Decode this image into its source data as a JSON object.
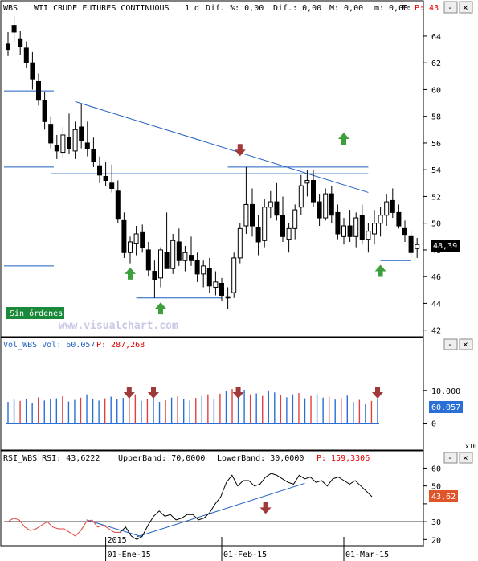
{
  "header": {
    "symbol": "WBS",
    "title": "WTI CRUDE FUTURES CONTINUOUS",
    "period": "1 d",
    "dif_label": "Dif. %: 0,00",
    "dif2_label": "Dif.: 0,00",
    "m_label": "M: 0,00",
    "m2_label": "m: 0,00",
    "f_label": "F:",
    "p_label": "P: 43"
  },
  "colors": {
    "up": "#ffffff",
    "down": "#000000",
    "trendline": "#1f5fbf",
    "level": "#1f5fbf",
    "arrow_up": "#3da03d",
    "arrow_down": "#a03a3a",
    "vol_blue": "#2a6fd6",
    "vol_red": "#e04040",
    "rsi_red": "#e04040",
    "rsi_black": "#000000",
    "badge_blue": "#2a6fd6",
    "badge_orange": "#e0542a",
    "sin_ordenes_bg": "#1a8a3a"
  },
  "sin_ordenes": "Sin órdenes",
  "watermark": "www.visualchart.com",
  "window_buttons": [
    "-",
    "×"
  ],
  "chart_data": [
    {
      "type": "candlestick",
      "ylim": [
        41.5,
        65.5
      ],
      "yticks": [
        42,
        44,
        46,
        48,
        50,
        52,
        54,
        56,
        58,
        60,
        62,
        64
      ],
      "last_price": "48,39",
      "bars": [
        {
          "o": 63.4,
          "h": 64.3,
          "l": 62.5,
          "c": 63.0
        },
        {
          "o": 64.8,
          "h": 65.5,
          "l": 63.6,
          "c": 64.3
        },
        {
          "o": 63.8,
          "h": 64.4,
          "l": 62.6,
          "c": 63.2
        },
        {
          "o": 63.1,
          "h": 63.6,
          "l": 61.6,
          "c": 62.0
        },
        {
          "o": 62.0,
          "h": 62.8,
          "l": 60.0,
          "c": 60.8
        },
        {
          "o": 60.6,
          "h": 61.2,
          "l": 58.8,
          "c": 59.2
        },
        {
          "o": 59.2,
          "h": 59.8,
          "l": 57.0,
          "c": 57.6
        },
        {
          "o": 57.4,
          "h": 58.0,
          "l": 55.6,
          "c": 56.0
        },
        {
          "o": 55.8,
          "h": 56.6,
          "l": 54.8,
          "c": 55.4
        },
        {
          "o": 55.3,
          "h": 57.2,
          "l": 54.9,
          "c": 56.6
        },
        {
          "o": 56.4,
          "h": 58.2,
          "l": 55.2,
          "c": 55.6
        },
        {
          "o": 55.4,
          "h": 57.6,
          "l": 54.8,
          "c": 57.0
        },
        {
          "o": 57.2,
          "h": 58.9,
          "l": 55.6,
          "c": 56.2
        },
        {
          "o": 56.0,
          "h": 57.6,
          "l": 55.0,
          "c": 55.6
        },
        {
          "o": 55.5,
          "h": 56.4,
          "l": 54.2,
          "c": 54.6
        },
        {
          "o": 54.3,
          "h": 55.0,
          "l": 53.0,
          "c": 53.6
        },
        {
          "o": 53.5,
          "h": 54.6,
          "l": 52.8,
          "c": 53.2
        },
        {
          "o": 53.0,
          "h": 54.4,
          "l": 52.3,
          "c": 52.6
        },
        {
          "o": 52.4,
          "h": 53.2,
          "l": 50.0,
          "c": 50.3
        },
        {
          "o": 50.2,
          "h": 50.8,
          "l": 47.4,
          "c": 47.8
        },
        {
          "o": 47.8,
          "h": 49.0,
          "l": 47.0,
          "c": 48.6
        },
        {
          "o": 48.5,
          "h": 49.8,
          "l": 47.6,
          "c": 49.2
        },
        {
          "o": 49.3,
          "h": 49.9,
          "l": 47.8,
          "c": 48.2
        },
        {
          "o": 48.0,
          "h": 48.6,
          "l": 46.0,
          "c": 46.5
        },
        {
          "o": 46.4,
          "h": 47.2,
          "l": 44.4,
          "c": 45.8
        },
        {
          "o": 45.9,
          "h": 48.2,
          "l": 45.2,
          "c": 48.0
        },
        {
          "o": 47.8,
          "h": 50.8,
          "l": 46.8,
          "c": 46.6
        },
        {
          "o": 46.6,
          "h": 49.2,
          "l": 46.2,
          "c": 48.7
        },
        {
          "o": 48.6,
          "h": 49.6,
          "l": 46.8,
          "c": 47.2
        },
        {
          "o": 47.2,
          "h": 48.3,
          "l": 46.4,
          "c": 47.8
        },
        {
          "o": 47.6,
          "h": 49.0,
          "l": 46.8,
          "c": 47.2
        },
        {
          "o": 47.2,
          "h": 47.8,
          "l": 45.6,
          "c": 46.2
        },
        {
          "o": 46.2,
          "h": 47.2,
          "l": 45.2,
          "c": 46.8
        },
        {
          "o": 46.6,
          "h": 47.4,
          "l": 44.8,
          "c": 45.3
        },
        {
          "o": 45.2,
          "h": 46.4,
          "l": 44.6,
          "c": 45.6
        },
        {
          "o": 45.5,
          "h": 45.9,
          "l": 44.2,
          "c": 44.6
        },
        {
          "o": 44.5,
          "h": 45.2,
          "l": 43.6,
          "c": 44.4
        },
        {
          "o": 44.8,
          "h": 47.8,
          "l": 44.4,
          "c": 47.4
        },
        {
          "o": 47.4,
          "h": 50.0,
          "l": 47.0,
          "c": 49.6
        },
        {
          "o": 49.8,
          "h": 54.2,
          "l": 49.2,
          "c": 51.4
        },
        {
          "o": 51.4,
          "h": 52.6,
          "l": 49.0,
          "c": 49.8
        },
        {
          "o": 49.7,
          "h": 50.6,
          "l": 47.6,
          "c": 48.6
        },
        {
          "o": 48.7,
          "h": 51.8,
          "l": 48.2,
          "c": 51.2
        },
        {
          "o": 51.2,
          "h": 52.4,
          "l": 50.4,
          "c": 51.6
        },
        {
          "o": 51.6,
          "h": 53.0,
          "l": 50.2,
          "c": 50.6
        },
        {
          "o": 50.6,
          "h": 52.0,
          "l": 48.6,
          "c": 49.0
        },
        {
          "o": 48.8,
          "h": 50.0,
          "l": 47.8,
          "c": 49.6
        },
        {
          "o": 49.6,
          "h": 51.4,
          "l": 48.8,
          "c": 51.0
        },
        {
          "o": 51.2,
          "h": 53.6,
          "l": 50.6,
          "c": 52.8
        },
        {
          "o": 53.0,
          "h": 54.0,
          "l": 52.0,
          "c": 53.2
        },
        {
          "o": 53.2,
          "h": 54.0,
          "l": 51.2,
          "c": 51.6
        },
        {
          "o": 51.6,
          "h": 52.2,
          "l": 49.8,
          "c": 50.4
        },
        {
          "o": 50.4,
          "h": 52.6,
          "l": 50.2,
          "c": 52.2
        },
        {
          "o": 52.2,
          "h": 52.8,
          "l": 50.0,
          "c": 50.6
        },
        {
          "o": 50.8,
          "h": 51.4,
          "l": 48.8,
          "c": 49.2
        },
        {
          "o": 49.0,
          "h": 50.4,
          "l": 48.4,
          "c": 49.8
        },
        {
          "o": 49.8,
          "h": 51.0,
          "l": 48.6,
          "c": 49.0
        },
        {
          "o": 49.0,
          "h": 50.8,
          "l": 48.2,
          "c": 50.4
        },
        {
          "o": 50.6,
          "h": 51.4,
          "l": 48.4,
          "c": 48.8
        },
        {
          "o": 48.8,
          "h": 50.0,
          "l": 47.8,
          "c": 49.4
        },
        {
          "o": 49.2,
          "h": 51.0,
          "l": 48.4,
          "c": 50.0
        },
        {
          "o": 50.0,
          "h": 51.2,
          "l": 49.0,
          "c": 50.6
        },
        {
          "o": 50.6,
          "h": 52.2,
          "l": 49.8,
          "c": 51.6
        },
        {
          "o": 51.7,
          "h": 52.6,
          "l": 50.4,
          "c": 50.8
        },
        {
          "o": 50.8,
          "h": 51.4,
          "l": 49.6,
          "c": 49.8
        },
        {
          "o": 49.6,
          "h": 50.2,
          "l": 48.6,
          "c": 49.1
        },
        {
          "o": 49.0,
          "h": 49.4,
          "l": 47.4,
          "c": 47.8
        },
        {
          "o": 48.1,
          "h": 48.9,
          "l": 47.4,
          "c": 48.4
        }
      ],
      "annotations": {
        "trendlines": [
          {
            "from": {
              "bar": 11,
              "y": 59.1
            },
            "to": {
              "bar": 59,
              "y": 52.3
            }
          },
          {
            "from": {
              "bar": 7,
              "y": 53.7
            },
            "to": {
              "bar": 59,
              "y": 53.7
            }
          },
          {
            "from": {
              "bar": 36,
              "y": 54.2
            },
            "to": {
              "bar": 59,
              "y": 54.2
            }
          }
        ],
        "levels": [
          {
            "from": 0,
            "to": 7.5,
            "y": 59.9
          },
          {
            "from": 0,
            "to": 7.5,
            "y": 54.2
          },
          {
            "from": 0,
            "to": 7.5,
            "y": 46.8
          },
          {
            "from": 21,
            "to": 35,
            "y": 44.4
          },
          {
            "from": 61,
            "to": 66,
            "y": 47.2
          }
        ],
        "arrows": [
          {
            "bar": 20,
            "y": 46.2,
            "dir": "up"
          },
          {
            "bar": 38,
            "y": 55.5,
            "dir": "down"
          },
          {
            "bar": 55,
            "y": 56.3,
            "dir": "up"
          },
          {
            "bar": 61,
            "y": 46.4,
            "dir": "up"
          },
          {
            "bar": 25,
            "y": 43.6,
            "dir": "up"
          }
        ]
      }
    },
    {
      "type": "bar",
      "title": "Vol_WBS Vol: 60.057",
      "p_label": "P: 287,268",
      "ylim": [
        -8,
        22
      ],
      "yticks": [
        0,
        10
      ],
      "ytick_labels": [
        "0",
        "10.000"
      ],
      "scale_note": "x10",
      "last_value": "60.057",
      "values": [
        6.5,
        7.2,
        6.8,
        7.5,
        6.2,
        7.9,
        6.9,
        7.4,
        7.6,
        8.2,
        6.6,
        7.1,
        7.8,
        8.8,
        7.3,
        6.9,
        7.6,
        8.1,
        7.4,
        7.7,
        8.5,
        8.8,
        6.8,
        7.3,
        8.1,
        6.5,
        7.0,
        7.8,
        8.2,
        7.4,
        6.9,
        7.7,
        8.3,
        8.8,
        7.2,
        9.0,
        9.9,
        10.4,
        9.6,
        10.2,
        8.8,
        9.1,
        8.3,
        10.0,
        9.4,
        8.6,
        7.9,
        8.8,
        9.2,
        7.6,
        8.3,
        8.9,
        7.8,
        8.1,
        7.2,
        7.6,
        8.4,
        6.5,
        7.1,
        5.8,
        6.8,
        7.2
      ],
      "colors": [
        "b",
        "b",
        "r",
        "b",
        "b",
        "r",
        "b",
        "b",
        "b",
        "r",
        "b",
        "b",
        "r",
        "b",
        "b",
        "b",
        "r",
        "b",
        "b",
        "b",
        "r",
        "r",
        "b",
        "r",
        "b",
        "b",
        "r",
        "b",
        "r",
        "b",
        "b",
        "r",
        "b",
        "r",
        "b",
        "r",
        "b",
        "r",
        "b",
        "b",
        "r",
        "b",
        "r",
        "b",
        "b",
        "r",
        "b",
        "b",
        "r",
        "b",
        "r",
        "b",
        "b",
        "r",
        "b",
        "r",
        "b",
        "b",
        "r",
        "b",
        "r",
        "b"
      ],
      "arrows": [
        {
          "bar": 20,
          "dir": "down"
        },
        {
          "bar": 24,
          "dir": "down"
        },
        {
          "bar": 38,
          "dir": "down"
        },
        {
          "bar": 61,
          "dir": "down"
        }
      ]
    },
    {
      "type": "line",
      "title": "RSI_WBS RSI: 43,6222",
      "upper_band_label": "UpperBand: 70,0000",
      "lower_band_label": "LowerBand: 30,0000",
      "p_label": "P: 159,3306",
      "ylim": [
        17,
        62
      ],
      "yticks": [
        20,
        30,
        40,
        50,
        60
      ],
      "reference_y": 30,
      "last_value": "43,62",
      "series": [
        {
          "color_key": "rsi_red",
          "values": [
            30,
            32,
            31,
            27,
            25,
            26,
            28,
            30,
            27,
            26,
            26,
            24,
            22,
            25,
            30,
            31,
            27,
            28,
            26,
            24,
            24
          ]
        },
        {
          "color_key": "rsi_black",
          "offset": 20,
          "values": [
            24,
            27,
            22,
            20,
            22,
            28,
            33,
            36,
            33,
            34,
            31,
            32,
            34,
            34,
            31,
            32,
            35,
            40,
            44,
            52,
            56,
            50,
            53,
            53,
            50,
            51,
            55,
            57,
            56,
            54,
            52,
            51,
            56,
            54,
            55,
            52,
            53,
            50,
            54,
            55,
            53,
            51,
            53,
            50,
            47,
            44
          ]
        }
      ],
      "trendlines": [
        {
          "from": {
            "bar": 14,
            "y": 31
          },
          "to": {
            "bar": 24,
            "y": 21.5
          }
        },
        {
          "from": {
            "bar": 23,
            "y": 21.5
          },
          "to": {
            "bar": 53,
            "y": 51.5
          }
        }
      ],
      "arrows": [
        {
          "bar": 46,
          "y": 38,
          "dir": "down"
        }
      ]
    }
  ],
  "x_axis": {
    "ticks": [
      {
        "bar": 16,
        "label": "01-Ene-15"
      },
      {
        "bar": 35,
        "label": "01-Feb-15"
      },
      {
        "bar": 55,
        "label": "01-Mar-15"
      }
    ],
    "year_label": "2015",
    "year_bar": 16
  }
}
